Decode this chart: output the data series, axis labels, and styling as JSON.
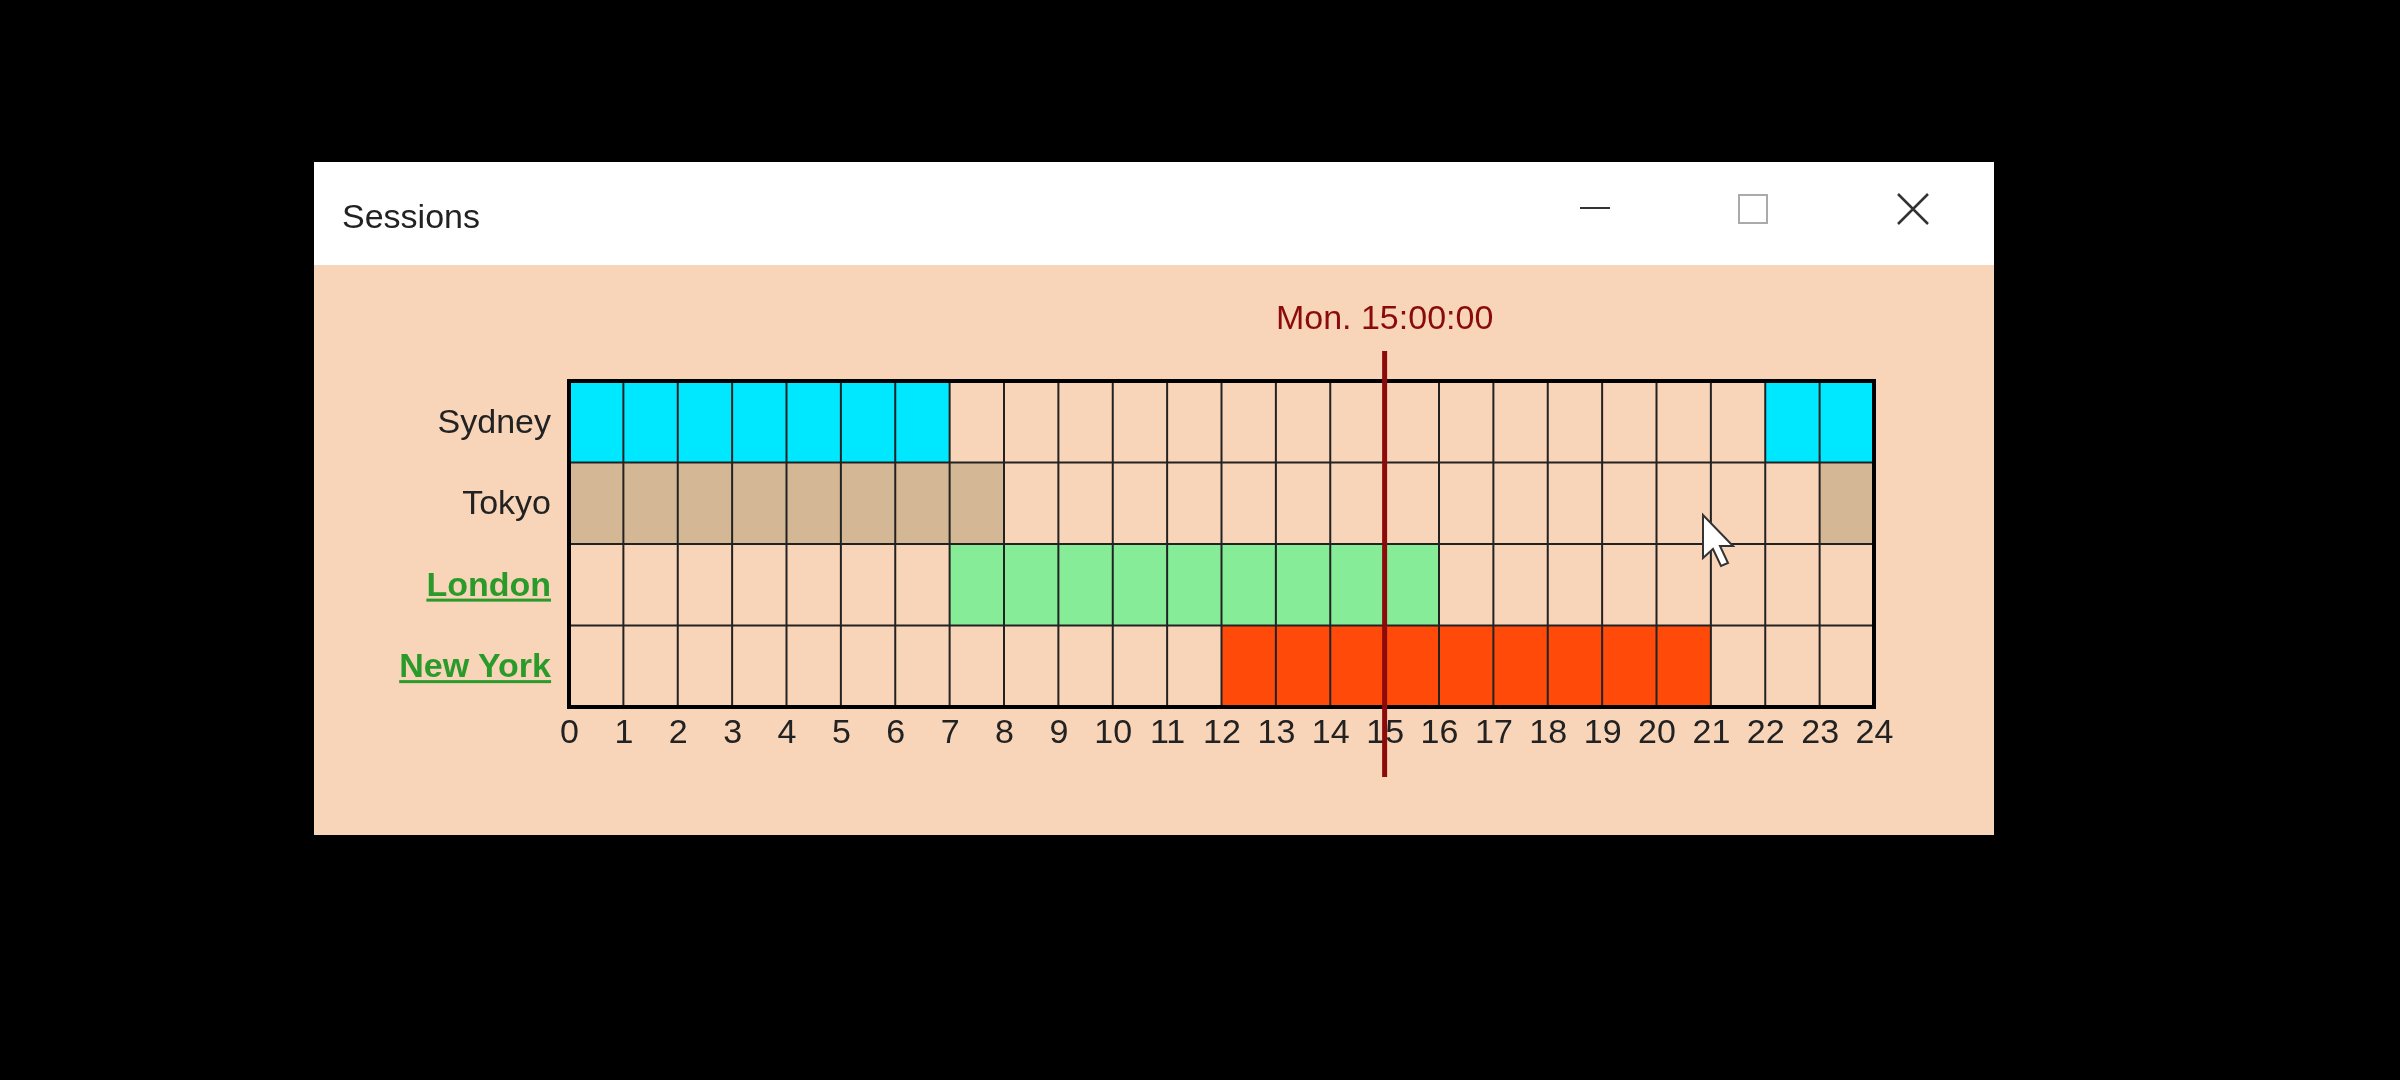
{
  "chart_data": {
    "type": "bar",
    "orientation": "horizontal",
    "title": "Sessions",
    "categories": [
      "Sydney",
      "Tokyo",
      "London",
      "New York"
    ],
    "series": [
      {
        "colors": [
          "#00e8ff",
          "#d4b896",
          "#86ec98",
          "#ff4a0a"
        ],
        "base": [
          0,
          0,
          7,
          12
        ],
        "values": [
          7,
          8,
          9,
          9
        ]
      },
      {
        "colors": [
          "#00e8ff",
          "#d4b896",
          null,
          null
        ],
        "base": [
          22,
          23,
          null,
          null
        ],
        "values": [
          2,
          1,
          null,
          null
        ]
      }
    ],
    "xlim": [
      0,
      24
    ],
    "xticks": [
      0,
      1,
      2,
      3,
      4,
      5,
      6,
      7,
      8,
      9,
      10,
      11,
      12,
      13,
      14,
      15,
      16,
      17,
      18,
      19,
      20,
      21,
      22,
      23,
      24
    ],
    "grid": "x",
    "ref_lines": [
      {
        "axis": "x",
        "value": 15,
        "label": "Mon. 15:00:00",
        "color": "#8b0a0a"
      }
    ]
  }
}
